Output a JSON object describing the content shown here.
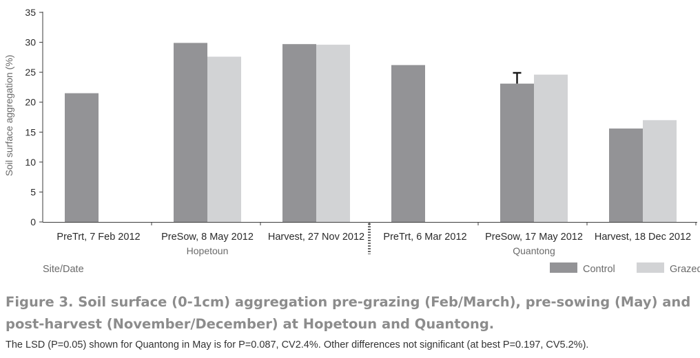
{
  "chart_data": {
    "type": "bar",
    "ylabel": "Soil surface aggregation (%)",
    "xlabel": "Site/Date",
    "ylim": [
      0,
      35
    ],
    "yticks": [
      0,
      5,
      10,
      15,
      20,
      25,
      30,
      35
    ],
    "grid": false,
    "legend_position": "bottom-right",
    "categories": [
      "PreTrt, 7 Feb 2012",
      "PreSow, 8 May 2012",
      "Harvest, 27 Nov 2012",
      "PreTrt, 6 Mar 2012",
      "PreSow, 17 May 2012",
      "Harvest, 18 Dec 2012"
    ],
    "groups": [
      {
        "label": "Hopetoun",
        "categories": [
          0,
          1,
          2
        ]
      },
      {
        "label": "Quantong",
        "categories": [
          3,
          4,
          5
        ]
      }
    ],
    "series": [
      {
        "name": "Control",
        "color": "#939396",
        "values": [
          21.5,
          29.9,
          29.7,
          26.2,
          23.1,
          15.6
        ]
      },
      {
        "name": "Grazed",
        "color": "#d2d3d5",
        "values": [
          null,
          27.6,
          29.6,
          null,
          24.6,
          17.0
        ]
      }
    ],
    "error_bars": [
      {
        "series": "Control",
        "category": 4,
        "value": 23.1,
        "upper": 24.9
      }
    ]
  },
  "caption": {
    "title": "Figure 3. Soil surface (0-1cm) aggregation pre-grazing (Feb/March), pre-sowing (May) and post-harvest (November/December) at Hopetoun and Quantong.",
    "note": "The LSD (P=0.05) shown for Quantong in May is for P=0.087, CV2.4%. Other differences not significant (at best P=0.197, CV5.2%)."
  }
}
